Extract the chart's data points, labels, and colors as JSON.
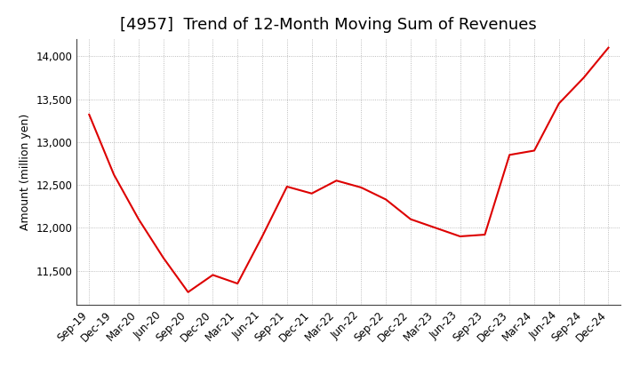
{
  "title": "[4957]  Trend of 12-Month Moving Sum of Revenues",
  "ylabel": "Amount (million yen)",
  "line_color": "#dd0000",
  "background_color": "#ffffff",
  "grid_color": "#aaaaaa",
  "x_labels": [
    "Sep-19",
    "Dec-19",
    "Mar-20",
    "Jun-20",
    "Sep-20",
    "Dec-20",
    "Mar-21",
    "Jun-21",
    "Sep-21",
    "Dec-21",
    "Mar-22",
    "Jun-22",
    "Sep-22",
    "Dec-22",
    "Mar-23",
    "Jun-23",
    "Sep-23",
    "Dec-23",
    "Mar-24",
    "Jun-24",
    "Sep-24",
    "Dec-24"
  ],
  "y_values": [
    13320,
    12620,
    12100,
    11650,
    11250,
    11450,
    11350,
    11900,
    12480,
    12400,
    12550,
    12470,
    12330,
    12100,
    12000,
    11900,
    11920,
    12850,
    12900,
    13450,
    13750,
    14100
  ],
  "ylim": [
    11100,
    14200
  ],
  "yticks": [
    11500,
    12000,
    12500,
    13000,
    13500,
    14000
  ],
  "title_fontsize": 13,
  "label_fontsize": 9,
  "tick_fontsize": 8.5
}
